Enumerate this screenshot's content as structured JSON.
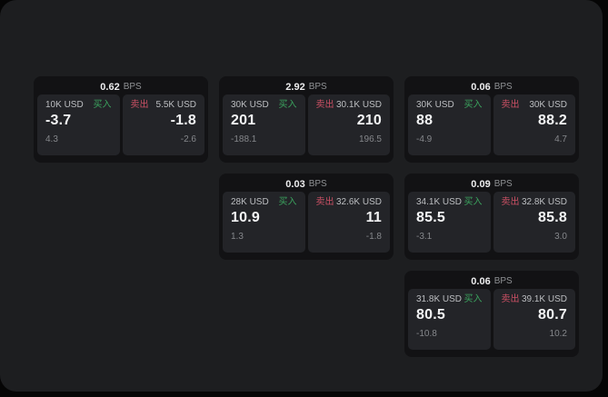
{
  "labels": {
    "bps_unit": "BPS",
    "buy": "买入",
    "sell": "卖出"
  },
  "colors": {
    "page_bg": "#1d1e20",
    "card_bg": "#121214",
    "panel_bg": "#232428",
    "buy_accent": "#3ba35e",
    "sell_accent": "#cb5064"
  },
  "cards": [
    {
      "row": 1,
      "col": 1,
      "bps": "0.62",
      "buy": {
        "amount": "10K USD",
        "value": "-3.7",
        "change": "4.3"
      },
      "sell": {
        "amount": "5.5K USD",
        "value": "-1.8",
        "change": "-2.6"
      }
    },
    {
      "row": 1,
      "col": 2,
      "bps": "2.92",
      "buy": {
        "amount": "30K USD",
        "value": "201",
        "change": "-188.1"
      },
      "sell": {
        "amount": "30.1K USD",
        "value": "210",
        "change": "196.5"
      }
    },
    {
      "row": 1,
      "col": 3,
      "bps": "0.06",
      "buy": {
        "amount": "30K USD",
        "value": "88",
        "change": "-4.9"
      },
      "sell": {
        "amount": "30K USD",
        "value": "88.2",
        "change": "4.7"
      }
    },
    {
      "row": 2,
      "col": 2,
      "bps": "0.03",
      "buy": {
        "amount": "28K USD",
        "value": "10.9",
        "change": "1.3"
      },
      "sell": {
        "amount": "32.6K USD",
        "value": "11",
        "change": "-1.8"
      }
    },
    {
      "row": 2,
      "col": 3,
      "bps": "0.09",
      "buy": {
        "amount": "34.1K USD",
        "value": "85.5",
        "change": "-3.1"
      },
      "sell": {
        "amount": "32.8K USD",
        "value": "85.8",
        "change": "3.0"
      }
    },
    {
      "row": 3,
      "col": 3,
      "bps": "0.06",
      "buy": {
        "amount": "31.8K USD",
        "value": "80.5",
        "change": "-10.8"
      },
      "sell": {
        "amount": "39.1K USD",
        "value": "80.7",
        "change": "10.2"
      }
    }
  ]
}
